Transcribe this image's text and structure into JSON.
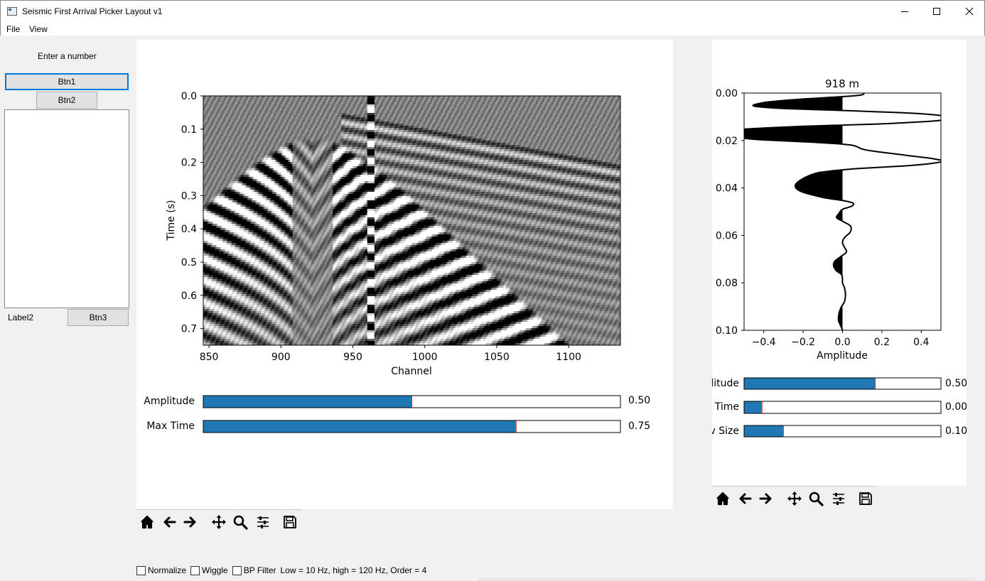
{
  "window": {
    "title": "Seismic First Arrival Picker Layout v1"
  },
  "menu": [
    "File",
    "View"
  ],
  "sidebar": {
    "prompt": "Enter a number",
    "btn1": "Btn1",
    "btn2": "Btn2",
    "label2": "Label2",
    "btn3": "Btn3"
  },
  "main_plot": {
    "ylabel": "Time (s)",
    "xlabel": "Channel",
    "y_ticks": [
      "0.0",
      "0.1",
      "0.2",
      "0.3",
      "0.4",
      "0.5",
      "0.6",
      "0.7"
    ],
    "x_ticks": [
      "850",
      "900",
      "950",
      "1000",
      "1050",
      "1100"
    ],
    "x_range": [
      846,
      1136
    ],
    "y_range": [
      0,
      0.75
    ],
    "sliders": [
      {
        "label": "Amplitude",
        "value": 0.5,
        "display": "0.50",
        "min": 0,
        "max": 1
      },
      {
        "label": "Max Time",
        "value": 0.75,
        "display": "0.75",
        "min": 0,
        "max": 1
      }
    ]
  },
  "trace_plot": {
    "title": "918 m",
    "xlabel": "Amplitude",
    "y_ticks": [
      "0.00",
      "0.02",
      "0.04",
      "0.06",
      "0.08",
      "0.10"
    ],
    "x_ticks": [
      "−0.4",
      "−0.2",
      "0.0",
      "0.2",
      "0.4"
    ],
    "x_range": [
      -0.5,
      0.5
    ],
    "y_range": [
      0,
      0.1
    ],
    "sliders": [
      {
        "label": "litude",
        "value": 0.5,
        "display": "0.50",
        "min": -0.5,
        "max": 1.0
      },
      {
        "label": "Time",
        "value": 0.0,
        "display": "0.00",
        "min": -0.1,
        "max": 1.0
      },
      {
        "label": "v Size",
        "value": 0.1,
        "display": "0.10",
        "min": 0.0,
        "max": 0.5
      }
    ]
  },
  "toolbar": [
    "home-icon",
    "back-arrow-icon",
    "forward-arrow-icon",
    "pan-icon",
    "zoom-icon",
    "configure-subplots-icon",
    "save-icon"
  ],
  "options": {
    "normalize": "Normalize",
    "wiggle": "Wiggle",
    "bp_filter": "BP Filter",
    "filter_info": "Low = 10 Hz, high = 120 Hz, Order = 4"
  },
  "colors": {
    "slider_fill": "#1f77b4",
    "slider_marker": "#d62728",
    "accent": "#0078d7"
  }
}
